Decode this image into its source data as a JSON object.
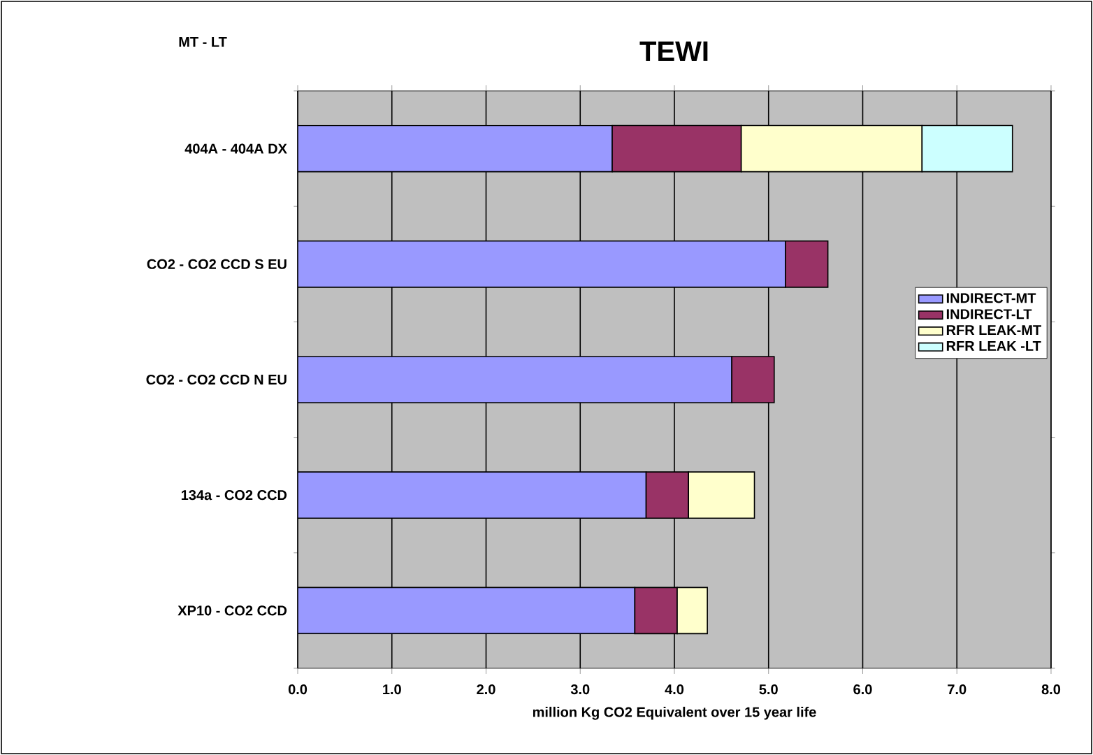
{
  "chart_data": {
    "type": "bar",
    "orientation": "horizontal",
    "stacked": true,
    "title": "TEWI",
    "xlabel": "million Kg CO2 Equivalent over 15 year life",
    "annotations": [
      "MT - LT"
    ],
    "categories": [
      "404A - 404A DX",
      "CO2 - CO2 CCD S EU",
      "CO2 - CO2 CCD N EU",
      "134a - CO2 CCD",
      "XP10 - CO2 CCD"
    ],
    "series": [
      {
        "name": "INDIRECT-MT",
        "color": "#9999ff",
        "values": [
          3.34,
          5.18,
          4.61,
          3.7,
          3.58
        ]
      },
      {
        "name": "INDIRECT-LT",
        "color": "#993366",
        "values": [
          1.37,
          0.45,
          0.45,
          0.45,
          0.45
        ]
      },
      {
        "name": "RFR LEAK-MT",
        "color": "#ffffcc",
        "values": [
          1.92,
          null,
          null,
          0.7,
          0.32
        ]
      },
      {
        "name": "RFR LEAK -LT",
        "color": "#ccffff",
        "values": [
          0.96,
          null,
          null,
          null,
          null
        ]
      }
    ],
    "xlim": [
      0,
      8
    ],
    "xticks": [
      {
        "value": 0,
        "label": "0.0"
      },
      {
        "value": 1,
        "label": "1.0"
      },
      {
        "value": 2,
        "label": "2.0"
      },
      {
        "value": 3,
        "label": "3.0"
      },
      {
        "value": 4,
        "label": "4.0"
      },
      {
        "value": 5,
        "label": "5.0"
      },
      {
        "value": 6,
        "label": "6.0"
      },
      {
        "value": 7,
        "label": "7.0"
      },
      {
        "value": 8,
        "label": "8.0"
      }
    ],
    "grid": "x",
    "legend": "right"
  }
}
